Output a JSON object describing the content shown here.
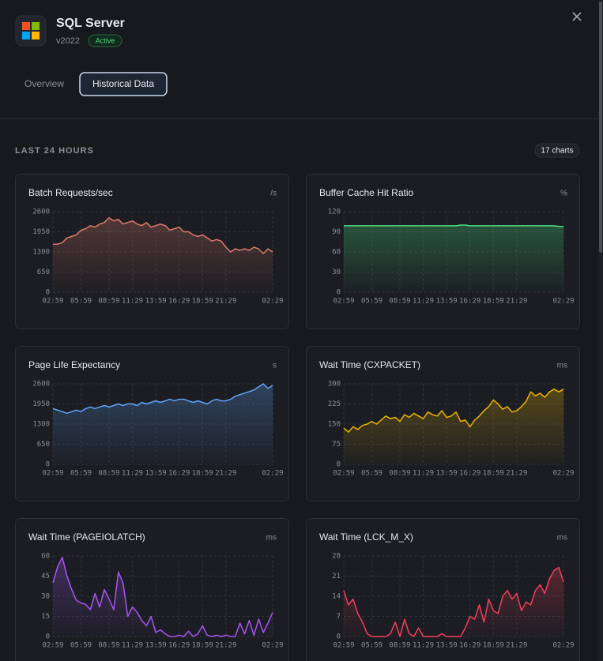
{
  "header": {
    "title": "SQL Server",
    "version": "v2022",
    "status": "Active"
  },
  "tabs": [
    "Overview",
    "Historical Data"
  ],
  "section": {
    "title": "LAST 24 HOURS",
    "badge": "17 charts"
  },
  "chart_data": [
    {
      "type": "line",
      "title": "Batch Requests/sec",
      "unit": "/s",
      "color": "#e07a6a",
      "grid": true,
      "categories": [
        "02:59",
        null,
        null,
        null,
        null,
        null,
        "05:59",
        null,
        null,
        null,
        null,
        null,
        "08:59",
        null,
        null,
        null,
        null,
        "11:29",
        null,
        null,
        null,
        null,
        "13:59",
        null,
        null,
        null,
        null,
        "16:29",
        null,
        null,
        null,
        null,
        "18:59",
        null,
        null,
        null,
        null,
        "21:29",
        null,
        null,
        null,
        null,
        null,
        null,
        null,
        null,
        null,
        "02:29"
      ],
      "values": [
        1550,
        1550,
        1600,
        1750,
        1800,
        1850,
        2000,
        2050,
        2150,
        2100,
        2200,
        2250,
        2400,
        2300,
        2350,
        2200,
        2250,
        2300,
        2200,
        2150,
        2250,
        2100,
        2150,
        2200,
        2150,
        2000,
        2050,
        2100,
        1950,
        1950,
        1850,
        1800,
        1850,
        1750,
        1650,
        1700,
        1650,
        1450,
        1300,
        1400,
        1350,
        1400,
        1350,
        1450,
        1400,
        1250,
        1400,
        1300
      ],
      "ylim": [
        0,
        2600
      ],
      "yticks": [
        0,
        650,
        1300,
        1950,
        2600
      ]
    },
    {
      "type": "line",
      "title": "Buffer Cache Hit Ratio",
      "unit": "%",
      "color": "#4ade80",
      "grid": true,
      "categories": [
        "02:59",
        null,
        null,
        null,
        null,
        null,
        "05:59",
        null,
        null,
        null,
        null,
        null,
        "08:59",
        null,
        null,
        null,
        null,
        "11:29",
        null,
        null,
        null,
        null,
        "13:59",
        null,
        null,
        null,
        null,
        "16:29",
        null,
        null,
        null,
        null,
        "18:59",
        null,
        null,
        null,
        null,
        "21:29",
        null,
        null,
        null,
        null,
        null,
        null,
        null,
        null,
        null,
        "02:29"
      ],
      "values": [
        99,
        99,
        99,
        99,
        99,
        99,
        99,
        99,
        99,
        99,
        99,
        99,
        99,
        99,
        99,
        99,
        99,
        99,
        99,
        99,
        99,
        99,
        99,
        99,
        99,
        100,
        100,
        99,
        99,
        99,
        99,
        99,
        99,
        99,
        99,
        99,
        99,
        99,
        99,
        99,
        99,
        99,
        99,
        99,
        99,
        99,
        98,
        98
      ],
      "ylim": [
        0,
        120
      ],
      "yticks": [
        0,
        30,
        60,
        90,
        120
      ]
    },
    {
      "type": "line",
      "title": "Page Life Expectancy",
      "unit": "s",
      "color": "#60a5fa",
      "grid": true,
      "categories": [
        "02:59",
        null,
        null,
        null,
        null,
        null,
        "05:59",
        null,
        null,
        null,
        null,
        null,
        "08:59",
        null,
        null,
        null,
        null,
        "11:29",
        null,
        null,
        null,
        null,
        "13:59",
        null,
        null,
        null,
        null,
        "16:29",
        null,
        null,
        null,
        null,
        "18:59",
        null,
        null,
        null,
        null,
        "21:29",
        null,
        null,
        null,
        null,
        null,
        null,
        null,
        null,
        null,
        "02:29"
      ],
      "values": [
        1800,
        1750,
        1700,
        1650,
        1700,
        1750,
        1700,
        1800,
        1850,
        1800,
        1850,
        1900,
        1850,
        1900,
        1950,
        1900,
        1950,
        1950,
        1900,
        2000,
        1950,
        2000,
        2050,
        2000,
        2050,
        2100,
        2050,
        2100,
        2100,
        2050,
        2000,
        2050,
        2000,
        1950,
        2050,
        2100,
        2050,
        2050,
        2100,
        2200,
        2250,
        2300,
        2350,
        2400,
        2500,
        2600,
        2450,
        2550
      ],
      "ylim": [
        0,
        2600
      ],
      "yticks": [
        0,
        650,
        1300,
        1950,
        2600
      ]
    },
    {
      "type": "line",
      "title": "Wait Time (CXPACKET)",
      "unit": "ms",
      "color": "#eab308",
      "grid": true,
      "categories": [
        "02:59",
        null,
        null,
        null,
        null,
        null,
        "05:59",
        null,
        null,
        null,
        null,
        null,
        "08:59",
        null,
        null,
        null,
        null,
        "11:29",
        null,
        null,
        null,
        null,
        "13:59",
        null,
        null,
        null,
        null,
        "16:29",
        null,
        null,
        null,
        null,
        "18:59",
        null,
        null,
        null,
        null,
        "21:29",
        null,
        null,
        null,
        null,
        null,
        null,
        null,
        null,
        null,
        "02:29"
      ],
      "values": [
        135,
        120,
        140,
        130,
        145,
        150,
        160,
        150,
        165,
        180,
        170,
        175,
        160,
        185,
        175,
        190,
        180,
        170,
        195,
        185,
        180,
        200,
        175,
        180,
        195,
        160,
        165,
        140,
        165,
        180,
        200,
        215,
        240,
        225,
        205,
        215,
        195,
        200,
        215,
        235,
        270,
        255,
        265,
        250,
        270,
        280,
        270,
        280
      ],
      "ylim": [
        0,
        300
      ],
      "yticks": [
        0,
        75,
        150,
        225,
        300
      ]
    },
    {
      "type": "line",
      "title": "Wait Time (PAGEIOLATCH)",
      "unit": "ms",
      "color": "#a855f7",
      "grid": true,
      "categories": [
        "02:59",
        null,
        null,
        null,
        null,
        null,
        "05:59",
        null,
        null,
        null,
        null,
        null,
        "08:59",
        null,
        null,
        null,
        null,
        "11:29",
        null,
        null,
        null,
        null,
        "13:59",
        null,
        null,
        null,
        null,
        "16:29",
        null,
        null,
        null,
        null,
        "18:59",
        null,
        null,
        null,
        null,
        "21:29",
        null,
        null,
        null,
        null,
        null,
        null,
        null,
        null,
        null,
        "02:29"
      ],
      "values": [
        40,
        52,
        59,
        45,
        35,
        27,
        25,
        24,
        20,
        32,
        22,
        35,
        28,
        20,
        48,
        40,
        15,
        22,
        18,
        12,
        8,
        15,
        3,
        5,
        2,
        0,
        0,
        1,
        0,
        4,
        0,
        2,
        8,
        1,
        0,
        1,
        0,
        1,
        0,
        0,
        10,
        2,
        12,
        1,
        13,
        3,
        10,
        18
      ],
      "ylim": [
        0,
        60
      ],
      "yticks": [
        0,
        15,
        30,
        45,
        60
      ]
    },
    {
      "type": "line",
      "title": "Wait Time (LCK_M_X)",
      "unit": "ms",
      "color": "#f43f5e",
      "grid": true,
      "categories": [
        "02:59",
        null,
        null,
        null,
        null,
        null,
        "05:59",
        null,
        null,
        null,
        null,
        null,
        "08:59",
        null,
        null,
        null,
        null,
        "11:29",
        null,
        null,
        null,
        null,
        "13:59",
        null,
        null,
        null,
        null,
        "16:29",
        null,
        null,
        null,
        null,
        "18:59",
        null,
        null,
        null,
        null,
        "21:29",
        null,
        null,
        null,
        null,
        null,
        null,
        null,
        null,
        null,
        "02:29"
      ],
      "values": [
        16,
        11,
        13,
        8,
        5,
        1,
        0,
        0,
        0,
        0,
        1,
        5,
        0,
        6,
        1,
        0,
        3,
        0,
        0,
        0,
        0,
        1,
        0,
        0,
        0,
        0,
        3,
        7,
        6,
        11,
        5,
        13,
        9,
        8,
        14,
        16,
        13,
        15,
        9,
        12,
        11,
        16,
        18,
        15,
        20,
        23,
        24,
        19
      ],
      "ylim": [
        0,
        28
      ],
      "yticks": [
        0,
        7,
        14,
        21,
        28
      ]
    }
  ]
}
